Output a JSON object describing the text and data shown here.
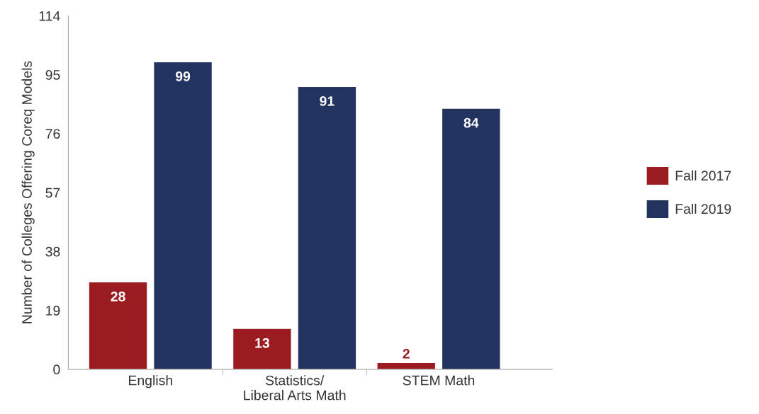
{
  "chart_data": {
    "type": "bar",
    "ylabel": "Number of Colleges Offering Coreq Models",
    "categories": [
      "English",
      "Statistics/\nLiberal Arts Math",
      "STEM Math"
    ],
    "series": [
      {
        "name": "Fall 2017",
        "color": "#9b1c20",
        "values": [
          28,
          13,
          2
        ]
      },
      {
        "name": "Fall 2019",
        "color": "#22335f",
        "values": [
          99,
          91,
          84
        ]
      }
    ],
    "ylim": [
      0,
      114
    ],
    "yticks": [
      0,
      19,
      38,
      57,
      76,
      95,
      114
    ],
    "data_labels": true,
    "grid": false,
    "legend": "right"
  }
}
